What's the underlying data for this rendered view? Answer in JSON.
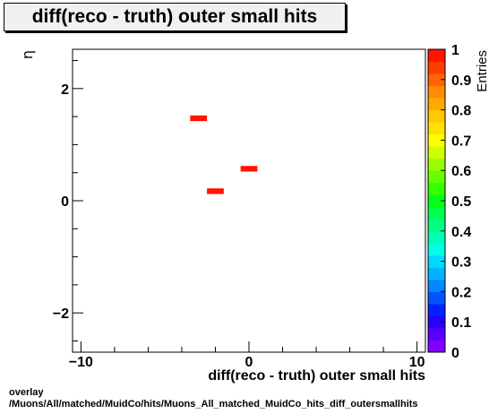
{
  "title": "diff(reco - truth) outer small hits",
  "footer": {
    "line1": "overlay",
    "line2": "/Muons/All/matched/MuidCo/hits/Muons_All_matched_MuidCo_hits_diff_outersmallhits"
  },
  "chart_data": {
    "type": "heatmap",
    "title": "diff(reco - truth) outer small hits",
    "xlabel": "diff(reco - truth) outer small hits",
    "ylabel": "η",
    "zlabel": "Entries",
    "xlim": [
      -10.5,
      10.5
    ],
    "ylim": [
      -2.7,
      2.7
    ],
    "zlim": [
      0,
      1
    ],
    "x_ticks": [
      -10,
      0,
      10
    ],
    "y_ticks": [
      -2,
      0,
      2
    ],
    "z_ticks": [
      0,
      0.1,
      0.2,
      0.3,
      0.4,
      0.5,
      0.6,
      0.7,
      0.8,
      0.9,
      1
    ],
    "x_tick_labels": [
      "−10",
      "0",
      "10"
    ],
    "y_tick_labels": [
      "−2",
      "0",
      "2"
    ],
    "z_tick_labels": [
      "0",
      "0.1",
      "0.2",
      "0.3",
      "0.4",
      "0.5",
      "0.6",
      "0.7",
      "0.8",
      "0.9",
      "1"
    ],
    "bin_width": [
      1.0,
      0.1
    ],
    "cells": [
      {
        "x": -3.0,
        "y": 1.47,
        "value": 1
      },
      {
        "x": -2.0,
        "y": 0.17,
        "value": 1
      },
      {
        "x": 0.0,
        "y": 0.57,
        "value": 1
      }
    ],
    "grid": false,
    "palette": [
      "#7f00ff",
      "#5a00ff",
      "#2a00ff",
      "#0022ff",
      "#0055ff",
      "#0088ff",
      "#00b3ff",
      "#00d9ff",
      "#00ffe6",
      "#00ffb3",
      "#00ff80",
      "#00ff4d",
      "#00ff1a",
      "#33ff00",
      "#66ff00",
      "#99ff00",
      "#ccff00",
      "#ffff00",
      "#ffe100",
      "#ffc800",
      "#ffaa00",
      "#ff8c00",
      "#ff6400",
      "#ff3c00",
      "#ff1400"
    ],
    "cell_color": "#ff1400"
  }
}
